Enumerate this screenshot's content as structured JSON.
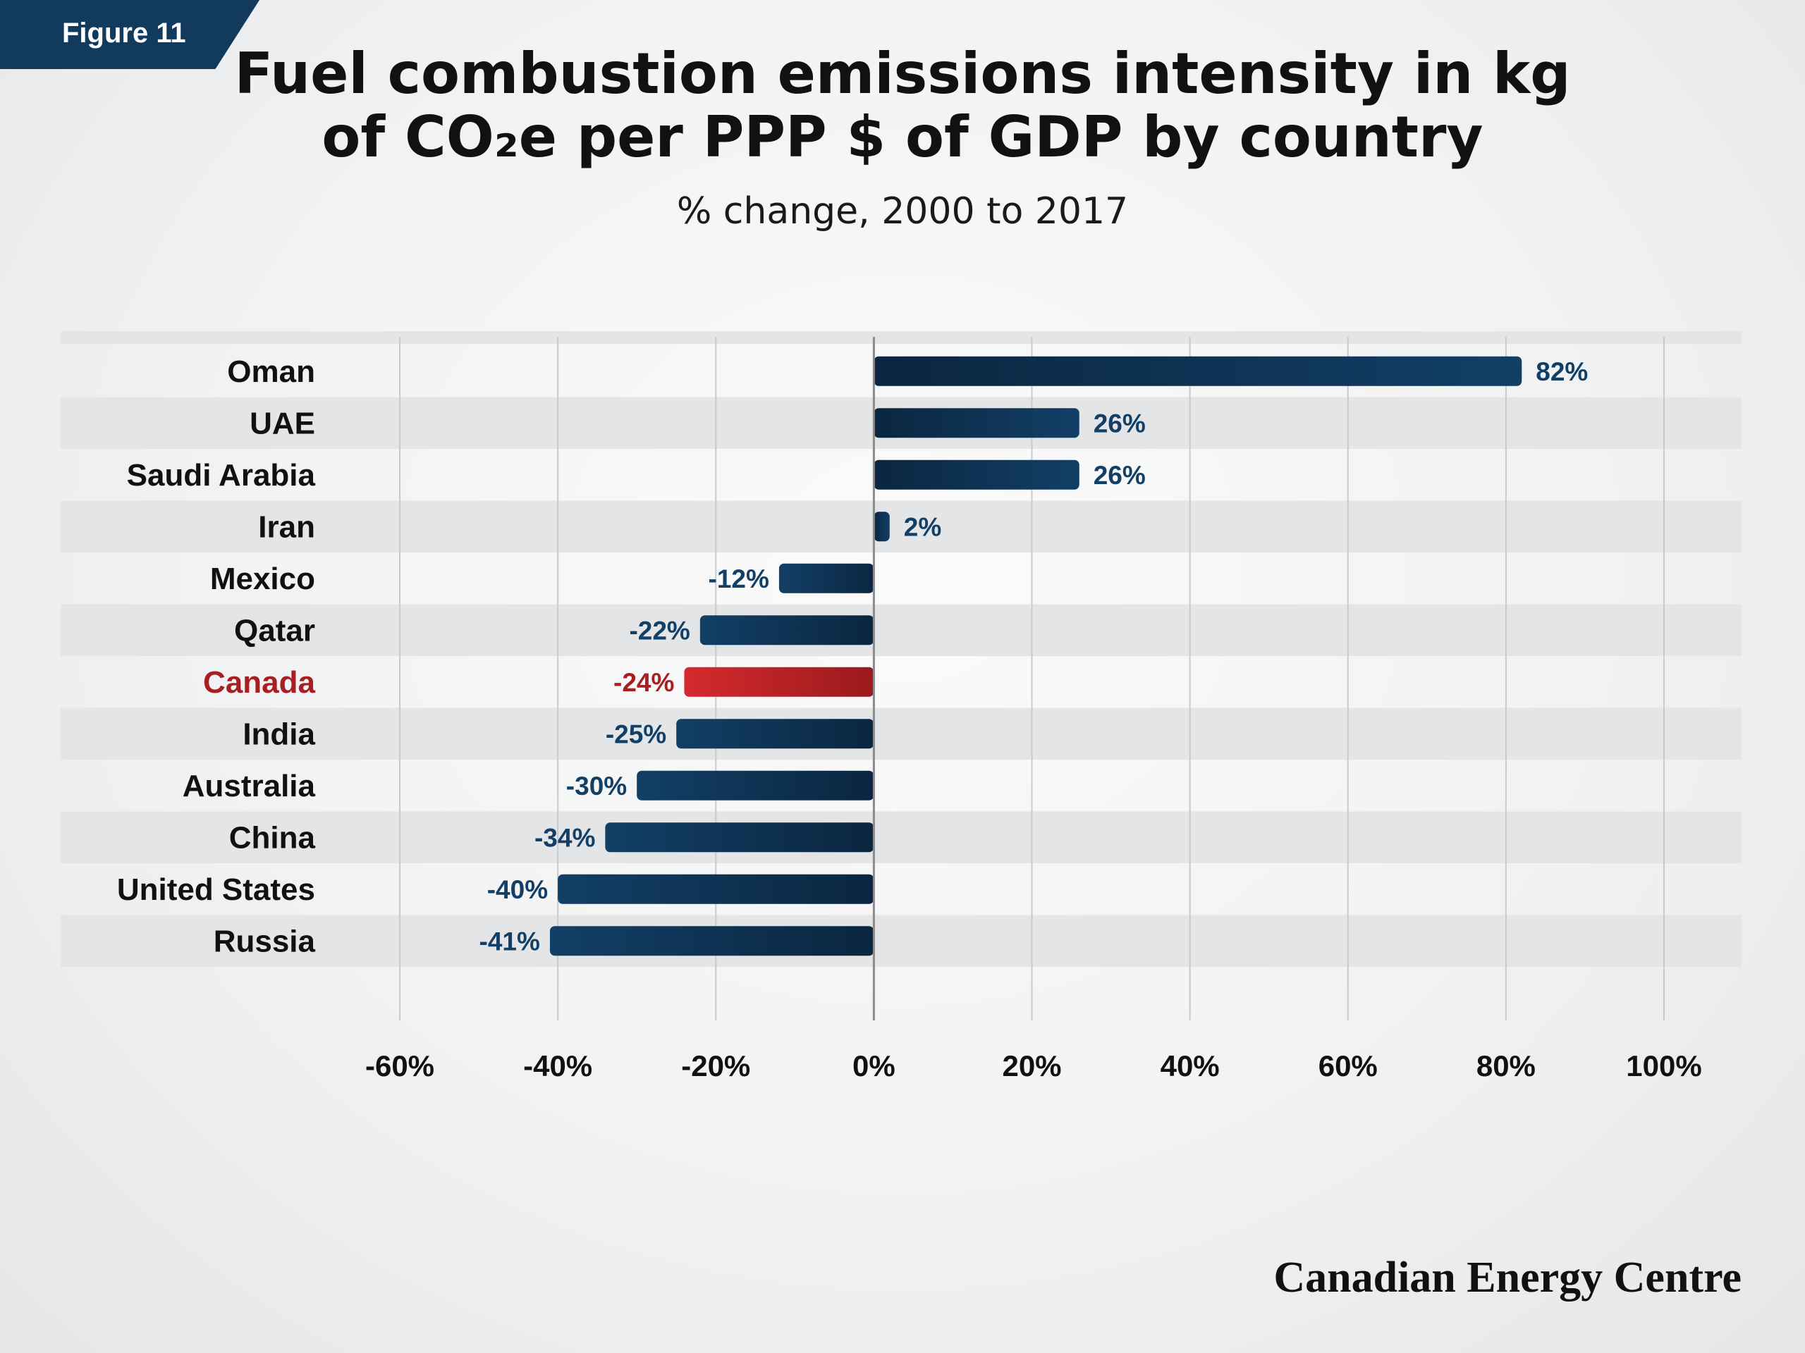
{
  "badge": {
    "label": "Figure 11"
  },
  "chart_data": {
    "type": "bar",
    "orientation": "horizontal",
    "title": "Fuel combustion emissions intensity in kg of CO₂e per PPP $ of GDP by country",
    "subtitle": "% change, 2000 to 2017",
    "categories": [
      "Oman",
      "UAE",
      "Saudi Arabia",
      "Iran",
      "Mexico",
      "Qatar",
      "Canada",
      "India",
      "Australia",
      "China",
      "United States",
      "Russia"
    ],
    "values": [
      82,
      26,
      26,
      2,
      -12,
      -22,
      -24,
      -25,
      -30,
      -34,
      -40,
      -41
    ],
    "value_labels": [
      "82%",
      "26%",
      "26%",
      "2%",
      "-12%",
      "-22%",
      "-24%",
      "-25%",
      "-30%",
      "-34%",
      "-40%",
      "-41%"
    ],
    "highlight": "Canada",
    "xlim": [
      -60,
      100
    ],
    "xticks": [
      -60,
      -40,
      -20,
      0,
      20,
      40,
      60,
      80,
      100
    ],
    "xtick_labels": [
      "-60%",
      "-40%",
      "-20%",
      "0%",
      "20%",
      "40%",
      "60%",
      "80%",
      "100%"
    ],
    "grid": true,
    "colors": {
      "bar": "#123f66",
      "bar_dark": "#0a2640",
      "highlight": "#d42a2e",
      "highlight_dark": "#9a1a1c",
      "label": "#123f66",
      "highlight_label": "#a81e22",
      "band": "#e4e5e7"
    }
  },
  "source": "Canadian Energy Centre"
}
